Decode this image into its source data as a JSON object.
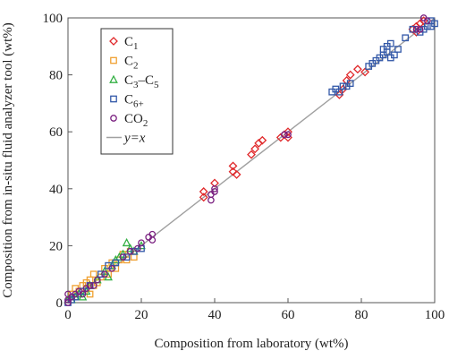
{
  "chart_data": {
    "type": "scatter",
    "title": "",
    "xlabel": "Composition from laboratory (wt%)",
    "ylabel": "Composition from in-situ fluid analyzer tool (wt%)",
    "xlim": [
      0,
      100
    ],
    "ylim": [
      0,
      100
    ],
    "x_ticks": [
      "0",
      "20",
      "40",
      "60",
      "80",
      "100"
    ],
    "y_ticks": [
      "0",
      "20",
      "40",
      "60",
      "80",
      "100"
    ],
    "grid": false,
    "legend_position": "top-left",
    "reference_line": {
      "name": "y=x",
      "color": "#a0a0a0",
      "x": [
        0,
        100
      ],
      "y": [
        0,
        100
      ]
    },
    "series": [
      {
        "name": "C1",
        "label_main": "C",
        "label_sub": "1",
        "marker": "diamond",
        "color": "#e0282a",
        "points": [
          [
            37,
            39
          ],
          [
            37,
            37
          ],
          [
            40,
            42
          ],
          [
            45,
            46
          ],
          [
            45,
            48
          ],
          [
            46,
            45
          ],
          [
            50,
            52
          ],
          [
            51,
            54
          ],
          [
            52,
            56
          ],
          [
            53,
            57
          ],
          [
            58,
            58
          ],
          [
            59,
            59
          ],
          [
            60,
            60
          ],
          [
            60,
            58
          ],
          [
            74,
            73
          ],
          [
            75,
            75
          ],
          [
            76,
            78
          ],
          [
            77,
            80
          ],
          [
            79,
            82
          ],
          [
            81,
            81
          ],
          [
            94,
            96
          ],
          [
            95,
            97
          ],
          [
            95,
            95
          ],
          [
            96,
            98
          ],
          [
            97,
            99
          ]
        ]
      },
      {
        "name": "C2",
        "label_main": "C",
        "label_sub": "2",
        "marker": "square",
        "color": "#f0a030",
        "points": [
          [
            1,
            3
          ],
          [
            2,
            5
          ],
          [
            3,
            4
          ],
          [
            4,
            6
          ],
          [
            5,
            5
          ],
          [
            5,
            7
          ],
          [
            6,
            8
          ],
          [
            7,
            10
          ],
          [
            8,
            7
          ],
          [
            9,
            9
          ],
          [
            10,
            12
          ],
          [
            11,
            10
          ],
          [
            12,
            14
          ],
          [
            13,
            12
          ],
          [
            14,
            15
          ],
          [
            15,
            17
          ],
          [
            16,
            15
          ],
          [
            17,
            18
          ],
          [
            18,
            16
          ],
          [
            7,
            6
          ],
          [
            6,
            3
          ],
          [
            2,
            2
          ]
        ]
      },
      {
        "name": "C3–C5",
        "label_main": "C",
        "label_sub": "3",
        "label_mid": "–C",
        "label_sub2": "5",
        "marker": "triangle",
        "color": "#34b044",
        "points": [
          [
            0,
            1
          ],
          [
            1,
            1
          ],
          [
            2,
            2
          ],
          [
            3,
            3
          ],
          [
            5,
            4
          ],
          [
            6,
            6
          ],
          [
            8,
            8
          ],
          [
            10,
            11
          ],
          [
            11,
            9
          ],
          [
            12,
            13
          ],
          [
            13,
            15
          ],
          [
            14,
            16
          ],
          [
            15,
            17
          ],
          [
            16,
            21
          ],
          [
            17,
            19
          ],
          [
            18,
            18
          ],
          [
            20,
            20
          ],
          [
            4,
            2
          ]
        ]
      },
      {
        "name": "C6+",
        "label_main": "C",
        "label_sub": "6+",
        "marker": "square",
        "color": "#3258a8",
        "points": [
          [
            0,
            0
          ],
          [
            1,
            1
          ],
          [
            2,
            2
          ],
          [
            4,
            4
          ],
          [
            6,
            6
          ],
          [
            9,
            10
          ],
          [
            11,
            13
          ],
          [
            13,
            14
          ],
          [
            16,
            16
          ],
          [
            18,
            18
          ],
          [
            20,
            19
          ],
          [
            72,
            74
          ],
          [
            73,
            75
          ],
          [
            74,
            74
          ],
          [
            75,
            76
          ],
          [
            76,
            76
          ],
          [
            77,
            77
          ],
          [
            82,
            83
          ],
          [
            83,
            84
          ],
          [
            84,
            85
          ],
          [
            85,
            86
          ],
          [
            86,
            87
          ],
          [
            86,
            89
          ],
          [
            87,
            90
          ],
          [
            87,
            88
          ],
          [
            88,
            86
          ],
          [
            88,
            91
          ],
          [
            89,
            87
          ],
          [
            90,
            89
          ],
          [
            92,
            93
          ],
          [
            94,
            96
          ],
          [
            96,
            95
          ],
          [
            97,
            96
          ],
          [
            98,
            97
          ],
          [
            99,
            97
          ],
          [
            99,
            99
          ],
          [
            100,
            98
          ]
        ]
      },
      {
        "name": "CO2",
        "label_main": "CO",
        "label_sub": "2",
        "marker": "circle",
        "color": "#7a2080",
        "points": [
          [
            0,
            0
          ],
          [
            0,
            1
          ],
          [
            1,
            2
          ],
          [
            0,
            3
          ],
          [
            2,
            3
          ],
          [
            3,
            4
          ],
          [
            4,
            3
          ],
          [
            5,
            5
          ],
          [
            6,
            6
          ],
          [
            7,
            6
          ],
          [
            8,
            8
          ],
          [
            10,
            10
          ],
          [
            12,
            12
          ],
          [
            15,
            16
          ],
          [
            17,
            18
          ],
          [
            19,
            19
          ],
          [
            20,
            21
          ],
          [
            22,
            23
          ],
          [
            23,
            24
          ],
          [
            23,
            22
          ],
          [
            39,
            36
          ],
          [
            39,
            38
          ],
          [
            40,
            39
          ],
          [
            40,
            40
          ],
          [
            59,
            59
          ],
          [
            60,
            59
          ],
          [
            95,
            96
          ],
          [
            96,
            96
          ],
          [
            97,
            100
          ],
          [
            98,
            99
          ]
        ]
      }
    ]
  }
}
